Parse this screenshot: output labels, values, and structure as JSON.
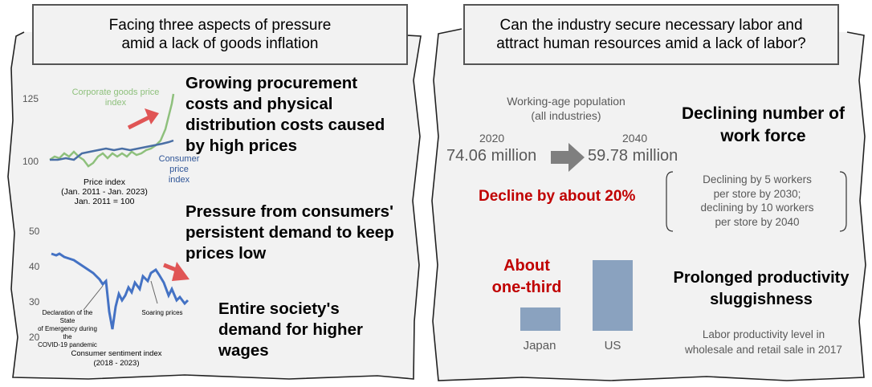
{
  "left": {
    "header": "Facing three aspects of pressure amid a lack of goods inflation",
    "header_line1": "Facing three aspects of pressure",
    "header_line2": "amid a lack of goods inflation",
    "price_chart": {
      "title_l1": "Price index",
      "title_l2": "(Jan. 2011 - Jan. 2023)",
      "title_l3": "Jan. 2011 = 100",
      "y_ticks": [
        "125",
        "100"
      ],
      "series": [
        {
          "name": "Corporate goods price index",
          "color": "#8ec07c"
        },
        {
          "name": "Consumer price index",
          "color": "#4a6fa5"
        }
      ],
      "cgpi_label_l1": "Corporate goods price",
      "cgpi_label_l2": "index",
      "cpi_label_l1": "Consumer price",
      "cpi_label_l2": "index"
    },
    "point1_l1": "Growing procurement",
    "point1_l2": "costs and physical",
    "point1_l3": "distribution costs caused",
    "point1_l4": "by high prices",
    "sentiment_chart": {
      "title_l1": "Consumer sentiment index",
      "title_l2": "(2018 - 2023)",
      "y_ticks": [
        "50",
        "40",
        "30",
        "20"
      ],
      "annotation1_l1": "Declaration of the State",
      "annotation1_l2": "of Emergency during the",
      "annotation1_l3": "COVID-19 pandemic",
      "annotation2": "Soaring prices",
      "color": "#4472c4"
    },
    "point2_l1": "Pressure from consumers'",
    "point2_l2": "persistent demand to keep",
    "point2_l3": "prices low",
    "point3_l1": "Entire society's",
    "point3_l2": "demand for higher",
    "point3_l3": "wages"
  },
  "right": {
    "header_line1": "Can the industry secure necessary labor and",
    "header_line2": "attract human resources amid a lack of labor?",
    "wap_label_l1": "Working-age population",
    "wap_label_l2": "(all industries)",
    "year1": "2020",
    "value1": "74.06 million",
    "year2": "2040",
    "value2": "59.78 million",
    "decline": "Decline by about 20%",
    "point1_l1": "Declining number of",
    "point1_l2": "work force",
    "bracket_l1": "Declining by 5 workers",
    "bracket_l2": "per store by 2030;",
    "bracket_l3": "declining by 10 workers",
    "bracket_l4": "per store by 2040",
    "about_l1": "About",
    "about_l2": "one-third",
    "bars": [
      {
        "label": "Japan",
        "value": 0.33
      },
      {
        "label": "US",
        "value": 1.0
      }
    ],
    "bar_color": "#8aa2bf",
    "point2_l1": "Prolonged productivity",
    "point2_l2": "sluggishness",
    "note_l1": "Labor productivity level in",
    "note_l2": "wholesale and retail sale in 2017"
  },
  "colors": {
    "accent_red": "#c00000",
    "arrow_red": "#e05555",
    "arrow_gray": "#7f7f7f"
  }
}
